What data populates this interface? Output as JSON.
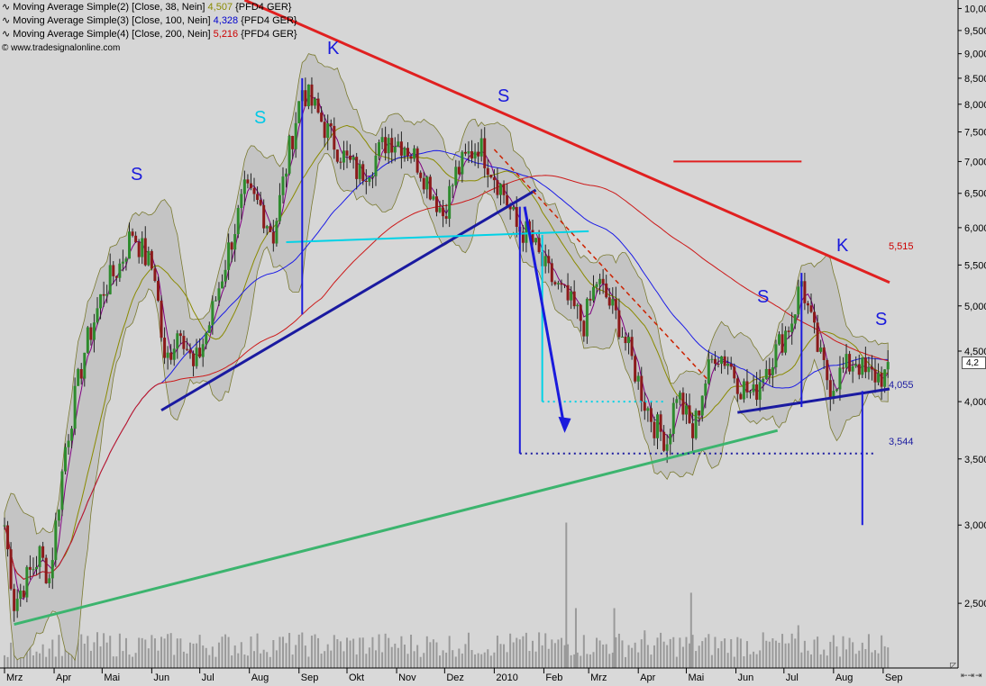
{
  "legend": [
    {
      "label": "Moving Average Simple(2) [Close, 38, Nein]",
      "value": "4,507",
      "suffix": "{PFD4 GER}",
      "color": "#8a8a00"
    },
    {
      "label": "Moving Average Simple(3) [Close, 100, Nein]",
      "value": "4,328",
      "suffix": "{PFD4 GER}",
      "color": "#0000cc"
    },
    {
      "label": "Moving Average Simple(4) [Close, 200, Nein]",
      "value": "5,216",
      "suffix": "{PFD4 GER}",
      "color": "#cc0000"
    }
  ],
  "watermark": "© www.tradesignalonline.com",
  "pattern_labels": [
    {
      "text": "K",
      "color": "#1a1adc"
    },
    {
      "text": "S",
      "color": "#1a1adc"
    },
    {
      "text": "S",
      "color": "#00c8e6"
    },
    {
      "text": "S",
      "color": "#1a1adc"
    },
    {
      "text": "K",
      "color": "#1a1adc"
    },
    {
      "text": "S",
      "color": "#1a1adc"
    },
    {
      "text": "S",
      "color": "#1a1adc"
    }
  ],
  "level_labels": {
    "resistance": "5,515",
    "neckline": "4,055",
    "target": "3,544"
  },
  "last_price_tag": "4,2",
  "chart_data": {
    "type": "candlestick",
    "y_scale": "log",
    "ylim": [
      2.15,
      10.2
    ],
    "y_ticks": [
      "10,00",
      "9,500",
      "9,000",
      "8,500",
      "8,000",
      "7,500",
      "7,000",
      "6,500",
      "6,000",
      "5,500",
      "5,000",
      "4,500",
      "4,000",
      "3,500",
      "3,000",
      "2,500"
    ],
    "y_tick_values": [
      10.0,
      9.5,
      9.0,
      8.5,
      8.0,
      7.5,
      7.0,
      6.5,
      6.0,
      5.5,
      5.0,
      4.5,
      4.0,
      3.5,
      3.0,
      2.5
    ],
    "x_ticks": [
      "Mrz",
      "Apr",
      "Mai",
      "Jun",
      "Jul",
      "Aug",
      "Sep",
      "Okt",
      "Nov",
      "Dez",
      "2010",
      "Feb",
      "Mrz",
      "Apr",
      "Mai",
      "Jun",
      "Jul",
      "Aug",
      "Sep"
    ],
    "x_tick_days": [
      0,
      31,
      61,
      92,
      122,
      153,
      184,
      214,
      245,
      275,
      306,
      337,
      365,
      396,
      426,
      457,
      487,
      518,
      549
    ],
    "x_last_day": 553,
    "close_anchors": [
      [
        0,
        3.0
      ],
      [
        6,
        2.5
      ],
      [
        14,
        2.65
      ],
      [
        22,
        2.8
      ],
      [
        28,
        2.65
      ],
      [
        38,
        3.6
      ],
      [
        50,
        4.5
      ],
      [
        62,
        5.2
      ],
      [
        72,
        5.5
      ],
      [
        80,
        5.95
      ],
      [
        88,
        5.6
      ],
      [
        94,
        5.4
      ],
      [
        100,
        4.35
      ],
      [
        110,
        4.8
      ],
      [
        118,
        4.3
      ],
      [
        128,
        4.8
      ],
      [
        140,
        5.7
      ],
      [
        150,
        6.5
      ],
      [
        160,
        6.3
      ],
      [
        168,
        5.9
      ],
      [
        178,
        7.2
      ],
      [
        186,
        8.3
      ],
      [
        194,
        7.9
      ],
      [
        204,
        7.4
      ],
      [
        214,
        7.0
      ],
      [
        222,
        6.8
      ],
      [
        230,
        7.0
      ],
      [
        240,
        7.4
      ],
      [
        250,
        7.3
      ],
      [
        258,
        7.0
      ],
      [
        266,
        6.6
      ],
      [
        274,
        6.2
      ],
      [
        282,
        6.8
      ],
      [
        290,
        7.1
      ],
      [
        296,
        7.3
      ],
      [
        302,
        7.0
      ],
      [
        312,
        6.5
      ],
      [
        320,
        6.0
      ],
      [
        328,
        5.9
      ],
      [
        336,
        5.5
      ],
      [
        346,
        5.2
      ],
      [
        354,
        5.0
      ],
      [
        362,
        4.8
      ],
      [
        370,
        5.3
      ],
      [
        376,
        5.1
      ],
      [
        384,
        4.8
      ],
      [
        392,
        4.4
      ],
      [
        400,
        4.0
      ],
      [
        406,
        3.8
      ],
      [
        414,
        3.65
      ],
      [
        420,
        4.1
      ],
      [
        430,
        3.7
      ],
      [
        436,
        4.1
      ],
      [
        444,
        4.5
      ],
      [
        452,
        4.4
      ],
      [
        460,
        4.15
      ],
      [
        468,
        4.05
      ],
      [
        474,
        4.3
      ],
      [
        482,
        4.5
      ],
      [
        492,
        4.85
      ],
      [
        498,
        5.3
      ],
      [
        504,
        4.8
      ],
      [
        510,
        4.4
      ],
      [
        516,
        4.15
      ],
      [
        524,
        4.3
      ],
      [
        532,
        4.42
      ],
      [
        538,
        4.25
      ]
    ],
    "volume_spikes": [
      [
        351,
        0.85
      ],
      [
        429,
        0.44
      ],
      [
        381,
        0.35
      ],
      [
        496,
        0.25
      ],
      [
        357,
        0.35
      ],
      [
        400,
        0.22
      ]
    ],
    "trendlines": [
      {
        "name": "resistance",
        "color": "#e02020",
        "points": [
          [
            150,
            10.2
          ],
          [
            553,
            5.28
          ]
        ]
      },
      {
        "name": "long-support",
        "color": "#3cb46e",
        "points": [
          [
            6,
            2.38
          ],
          [
            483,
            3.74
          ]
        ]
      },
      {
        "name": "rising-support",
        "color": "#1a1aa0",
        "points": [
          [
            98,
            3.92
          ],
          [
            332,
            6.55
          ]
        ]
      },
      {
        "name": "hs-neckline",
        "color": "#1a1aa0",
        "points": [
          [
            458,
            3.9
          ],
          [
            553,
            4.12
          ]
        ]
      },
      {
        "name": "top-neckline",
        "color": "#00d2e6",
        "points": [
          [
            176,
            5.8
          ],
          [
            365,
            5.95
          ]
        ]
      },
      {
        "name": "red-dash-channel",
        "color": "#cc2200",
        "points": [
          [
            306,
            7.2
          ],
          [
            440,
            4.2
          ]
        ]
      }
    ],
    "levels": [
      {
        "name": "resistance-mark",
        "value": 7.0,
        "from": 418,
        "to": 498,
        "color": "#e02020"
      },
      {
        "name": "target",
        "value": 3.544,
        "from": 322,
        "to": 545,
        "color": "#1a1aa0"
      },
      {
        "name": "cyan-target",
        "value": 4.0,
        "from": 336,
        "to": 412,
        "color": "#00d2e6"
      }
    ]
  }
}
